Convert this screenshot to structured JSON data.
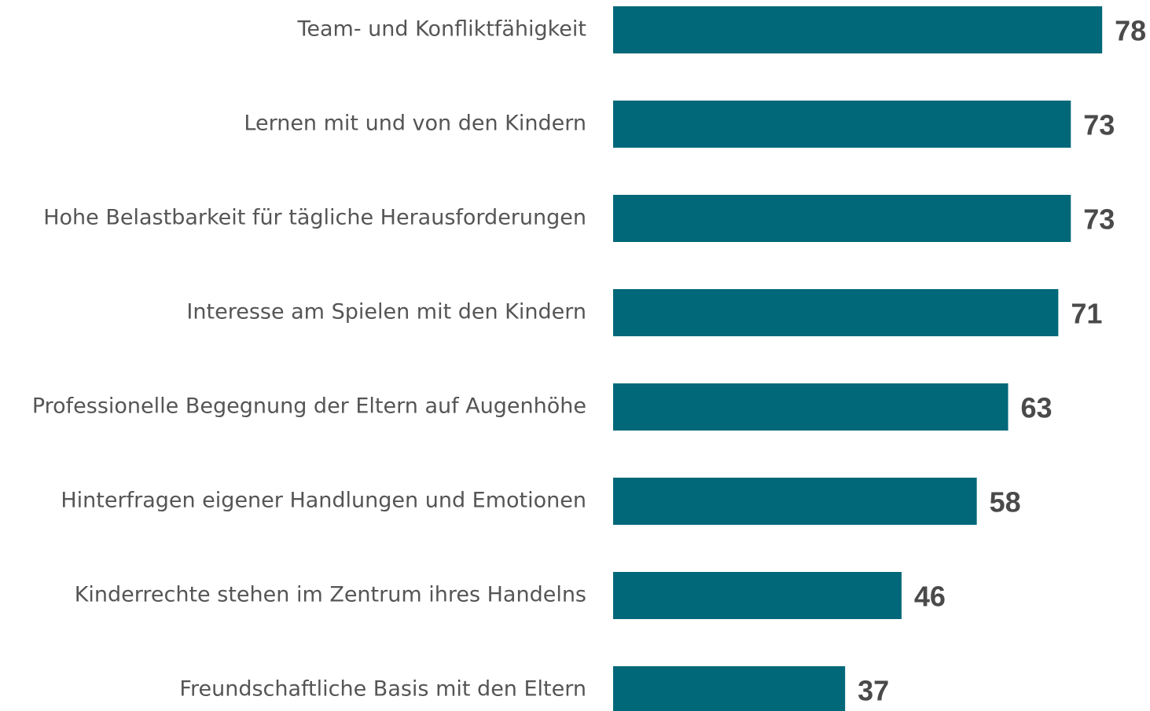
{
  "chart_data": {
    "type": "bar",
    "orientation": "horizontal",
    "categories": [
      "Team- und Konfliktfähigkeit",
      "Lernen mit und von den Kindern",
      "Hohe Belastbarkeit für tägliche Herausforderungen",
      "Interesse am Spielen mit den Kindern",
      "Professionelle Begegnung der Eltern auf Augenhöhe",
      "Hinterfragen eigener Handlungen und Emotionen",
      "Kinderrechte stehen im Zentrum ihres Handelns",
      "Freundschaftliche Basis mit den Eltern"
    ],
    "values": [
      78,
      73,
      73,
      71,
      63,
      58,
      46,
      37
    ],
    "color": "#006879",
    "xlim": [
      0,
      85
    ]
  }
}
